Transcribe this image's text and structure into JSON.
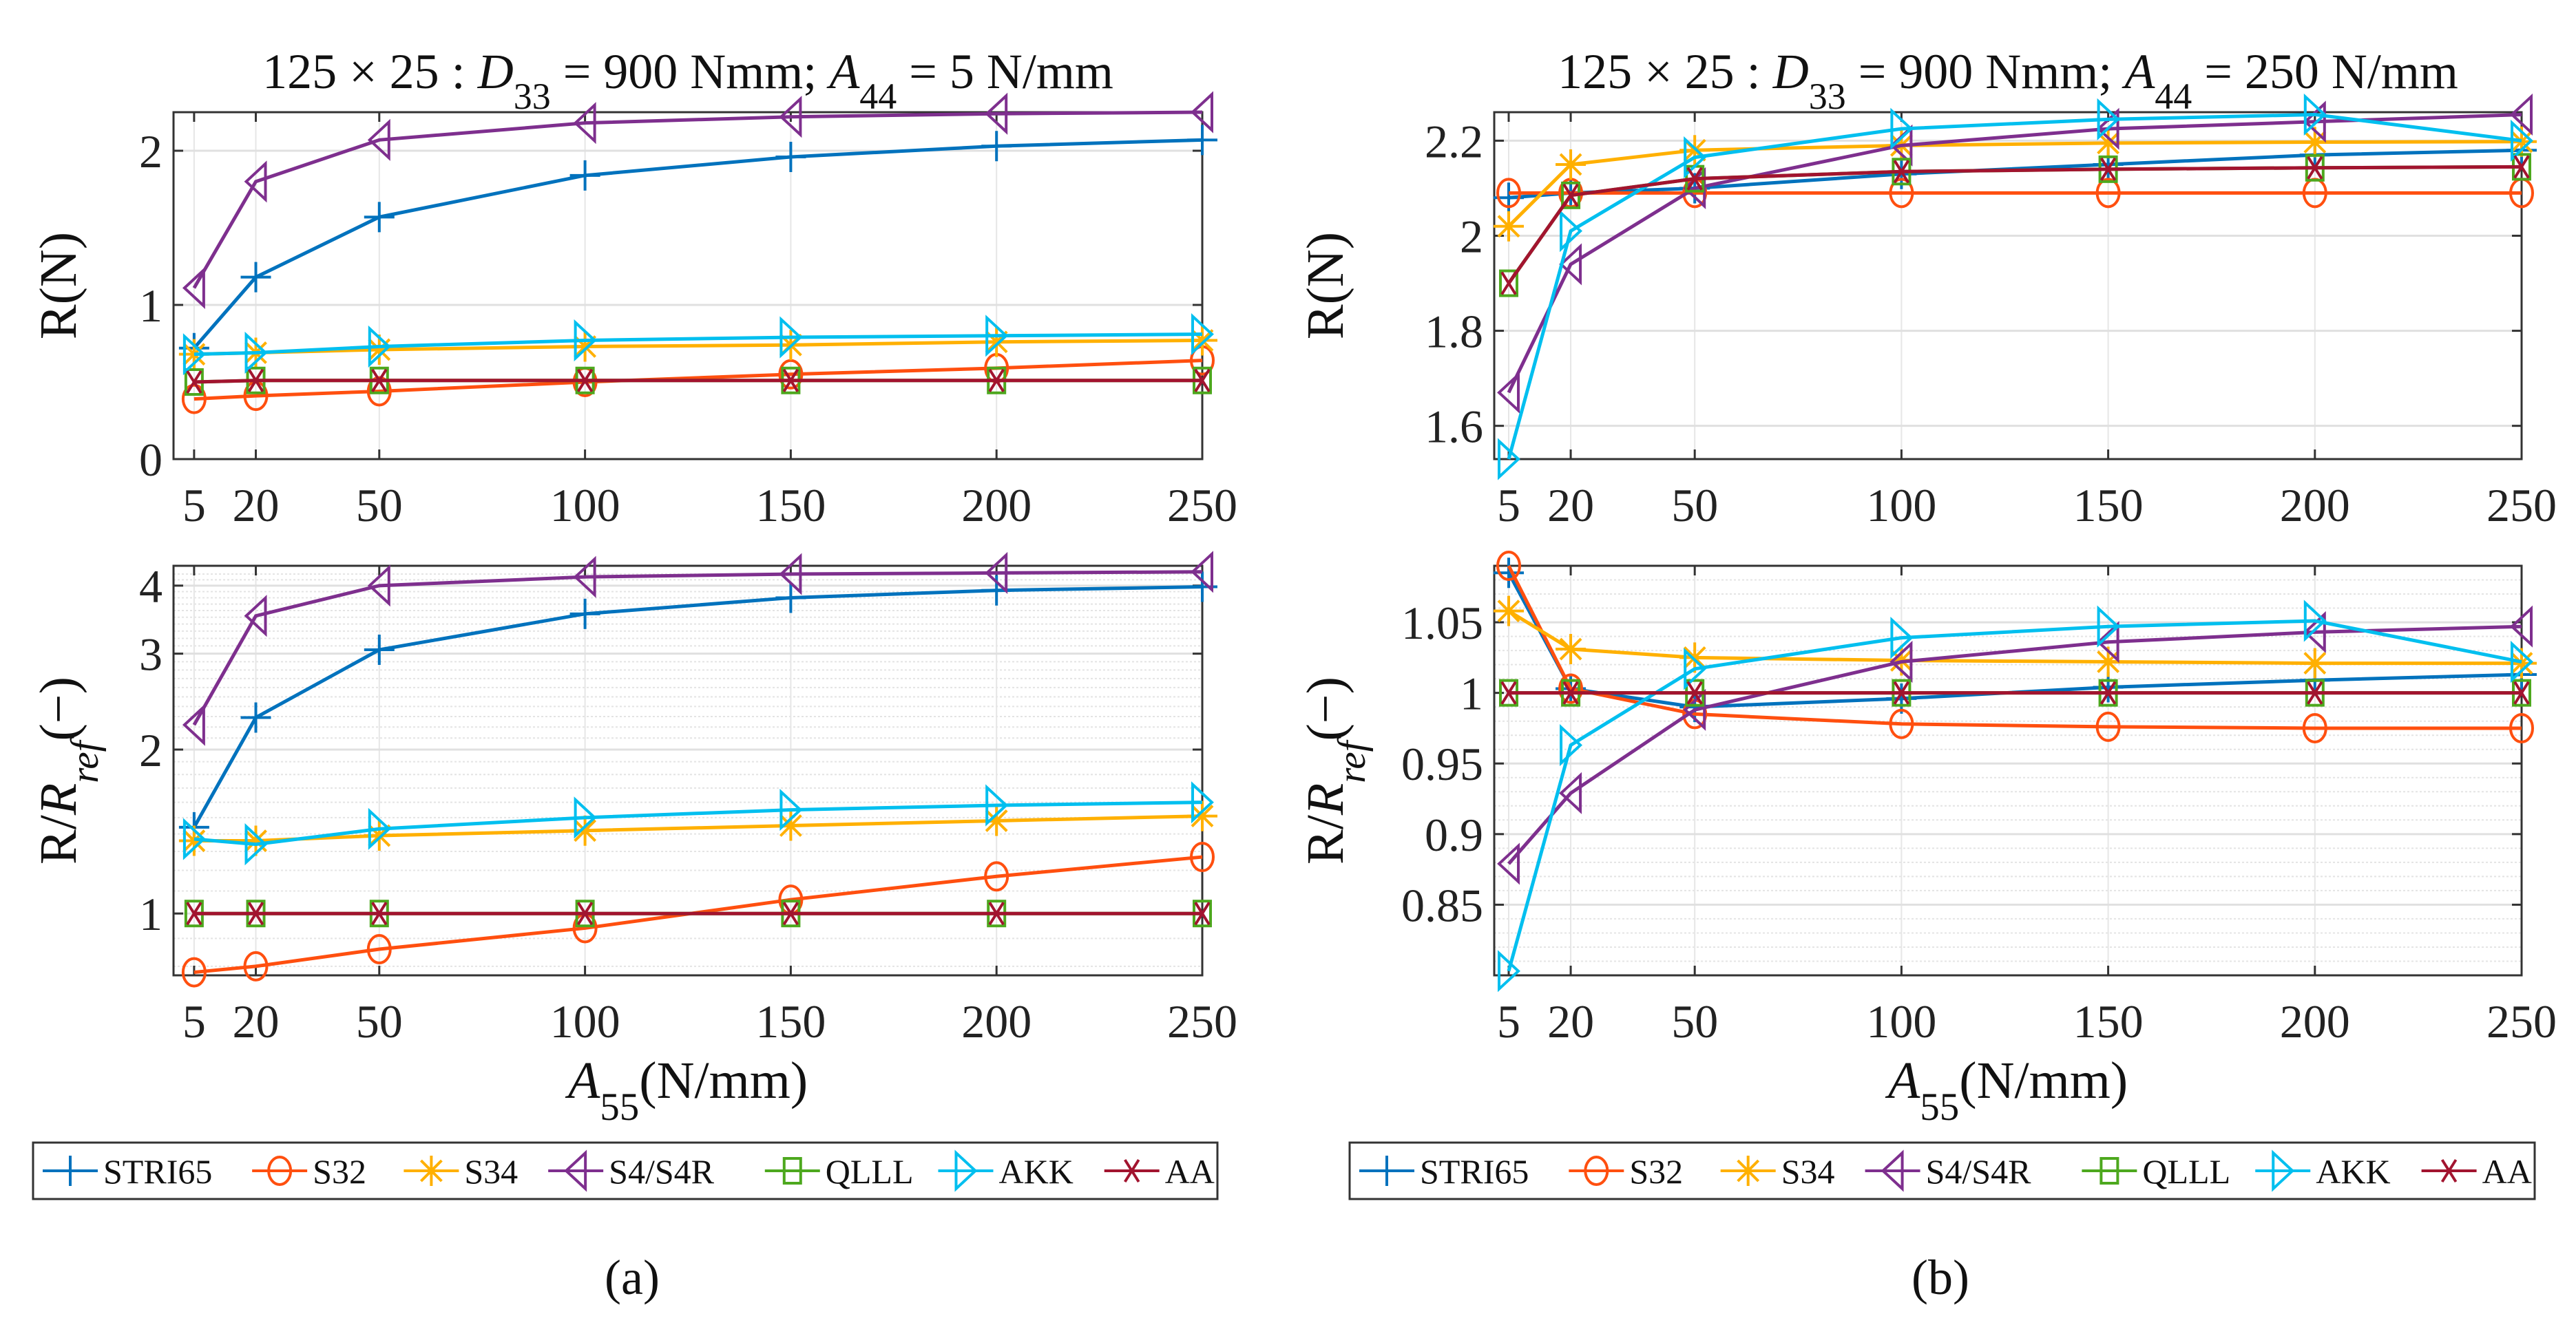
{
  "series_styles": [
    {
      "name": "STRI65",
      "color": "#0072BD",
      "marker": "plus"
    },
    {
      "name": "S32",
      "color": "#FF4F0F",
      "marker": "circle"
    },
    {
      "name": "S34",
      "color": "#FFB000",
      "marker": "asterisk"
    },
    {
      "name": "S4/S4R",
      "color": "#7E2F8E",
      "marker": "triangle-left"
    },
    {
      "name": "QLLL",
      "color": "#4DA81E",
      "marker": "square"
    },
    {
      "name": "AKK",
      "color": "#00BFEF",
      "marker": "triangle-right"
    },
    {
      "name": "AA",
      "color": "#A2142F",
      "marker": "x"
    }
  ],
  "captions": [
    "(a)",
    "(b)"
  ],
  "chart_data": [
    {
      "type": "line",
      "panel": "a-top",
      "title": "125 × 25 : D_33 = 900 Nmm; A_44 = 5 N/mm",
      "xlabel": "",
      "ylabel": "R(N)",
      "yscale": "linear",
      "x": [
        5,
        20,
        50,
        100,
        150,
        200,
        250
      ],
      "xlim": [
        0,
        250
      ],
      "xticks": [
        "5",
        "20",
        "50",
        "100",
        "150",
        "200",
        "250"
      ],
      "ylim": [
        0,
        2.25
      ],
      "yticks": [
        0,
        1,
        2
      ],
      "ytick_labels": [
        "0",
        "1",
        "2"
      ],
      "grid": true,
      "series": [
        {
          "name": "STRI65",
          "values": [
            0.72,
            1.18,
            1.57,
            1.84,
            1.96,
            2.03,
            2.07
          ]
        },
        {
          "name": "S32",
          "values": [
            0.39,
            0.41,
            0.44,
            0.5,
            0.55,
            0.59,
            0.64
          ]
        },
        {
          "name": "S34",
          "values": [
            0.68,
            0.69,
            0.71,
            0.73,
            0.74,
            0.76,
            0.77
          ]
        },
        {
          "name": "S4/S4R",
          "values": [
            1.11,
            1.8,
            2.07,
            2.18,
            2.22,
            2.24,
            2.25
          ]
        },
        {
          "name": "QLLL",
          "values": [
            0.5,
            0.51,
            0.51,
            0.51,
            0.51,
            0.51,
            0.51
          ]
        },
        {
          "name": "AKK",
          "values": [
            0.68,
            0.69,
            0.73,
            0.77,
            0.79,
            0.8,
            0.81
          ]
        },
        {
          "name": "AA",
          "values": [
            0.5,
            0.51,
            0.51,
            0.51,
            0.51,
            0.51,
            0.51
          ]
        }
      ]
    },
    {
      "type": "line",
      "panel": "a-bottom",
      "title": "",
      "xlabel": "A_55(N/mm)",
      "ylabel": "R/R_ref(−)",
      "yscale": "log",
      "x": [
        5,
        20,
        50,
        100,
        150,
        200,
        250
      ],
      "xlim": [
        0,
        250
      ],
      "xticks": [
        "5",
        "20",
        "50",
        "100",
        "150",
        "200",
        "250"
      ],
      "ylim": [
        0.77,
        4.35
      ],
      "yticks": [
        1,
        2,
        3,
        4
      ],
      "ytick_labels": [
        "1",
        "2",
        "3",
        "4"
      ],
      "grid": true,
      "series": [
        {
          "name": "STRI65",
          "values": [
            1.44,
            2.29,
            3.05,
            3.55,
            3.8,
            3.92,
            3.98
          ]
        },
        {
          "name": "S32",
          "values": [
            0.78,
            0.8,
            0.86,
            0.94,
            1.06,
            1.17,
            1.27
          ]
        },
        {
          "name": "S34",
          "values": [
            1.36,
            1.36,
            1.39,
            1.42,
            1.45,
            1.48,
            1.51
          ]
        },
        {
          "name": "S4/S4R",
          "values": [
            2.22,
            3.52,
            4.0,
            4.15,
            4.2,
            4.22,
            4.24
          ]
        },
        {
          "name": "QLLL",
          "values": [
            1,
            1,
            1,
            1,
            1,
            1,
            1
          ]
        },
        {
          "name": "AKK",
          "values": [
            1.37,
            1.34,
            1.43,
            1.5,
            1.55,
            1.58,
            1.6
          ]
        },
        {
          "name": "AA",
          "values": [
            1,
            1,
            1,
            1,
            1,
            1,
            1
          ]
        }
      ]
    },
    {
      "type": "line",
      "panel": "b-top",
      "title": "125 × 25 : D_33 = 900 Nmm; A_44 = 250 N/mm",
      "xlabel": "",
      "ylabel": "R(N)",
      "yscale": "linear",
      "x": [
        5,
        20,
        50,
        100,
        150,
        200,
        250
      ],
      "xlim": [
        1.5,
        250
      ],
      "xticks": [
        "5",
        "20",
        "50",
        "100",
        "150",
        "200",
        "250"
      ],
      "ylim": [
        1.53,
        2.26
      ],
      "yticks": [
        1.6,
        1.8,
        2.0,
        2.2
      ],
      "ytick_labels": [
        "1.6",
        "1.8",
        "2",
        "2.2"
      ],
      "grid": true,
      "series": [
        {
          "name": "STRI65",
          "values": [
            2.08,
            2.09,
            2.1,
            2.13,
            2.15,
            2.17,
            2.18
          ]
        },
        {
          "name": "S32",
          "values": [
            2.09,
            2.09,
            2.09,
            2.09,
            2.09,
            2.09,
            2.09
          ]
        },
        {
          "name": "S34",
          "values": [
            2.02,
            2.15,
            2.18,
            2.19,
            2.195,
            2.197,
            2.198
          ]
        },
        {
          "name": "S4/S4R",
          "values": [
            1.67,
            1.94,
            2.1,
            2.19,
            2.225,
            2.24,
            2.255
          ]
        },
        {
          "name": "QLLL",
          "values": [
            1.9,
            2.085,
            2.12,
            2.135,
            2.14,
            2.143,
            2.145
          ]
        },
        {
          "name": "AKK",
          "values": [
            1.53,
            2.01,
            2.165,
            2.225,
            2.245,
            2.255,
            2.2
          ]
        },
        {
          "name": "AA",
          "values": [
            1.9,
            2.085,
            2.12,
            2.135,
            2.14,
            2.143,
            2.145
          ]
        }
      ]
    },
    {
      "type": "line",
      "panel": "b-bottom",
      "title": "",
      "xlabel": "A_55(N/mm)",
      "ylabel": "R/R_ref(−)",
      "yscale": "linear",
      "x": [
        5,
        20,
        50,
        100,
        150,
        200,
        250
      ],
      "xlim": [
        1.5,
        250
      ],
      "xticks": [
        "5",
        "20",
        "50",
        "100",
        "150",
        "200",
        "250"
      ],
      "ylim": [
        0.8,
        1.09
      ],
      "yticks": [
        0.85,
        0.9,
        0.95,
        1.0,
        1.05
      ],
      "ytick_labels": [
        "0.85",
        "0.9",
        "0.95",
        "1",
        "1.05"
      ],
      "grid": true,
      "series": [
        {
          "name": "STRI65",
          "values": [
            1.085,
            1.003,
            0.99,
            0.996,
            1.004,
            1.009,
            1.013
          ]
        },
        {
          "name": "S32",
          "values": [
            1.09,
            1.003,
            0.985,
            0.978,
            0.976,
            0.975,
            0.975
          ]
        },
        {
          "name": "S34",
          "values": [
            1.058,
            1.031,
            1.025,
            1.023,
            1.022,
            1.021,
            1.021
          ]
        },
        {
          "name": "S4/S4R",
          "values": [
            0.879,
            0.929,
            0.988,
            1.022,
            1.036,
            1.043,
            1.047
          ]
        },
        {
          "name": "QLLL",
          "values": [
            1,
            1,
            1,
            1,
            1,
            1,
            1
          ]
        },
        {
          "name": "AKK",
          "values": [
            0.803,
            0.963,
            1.017,
            1.039,
            1.047,
            1.051,
            1.022
          ]
        },
        {
          "name": "AA",
          "values": [
            1,
            1,
            1,
            1,
            1,
            1,
            1
          ]
        }
      ]
    }
  ]
}
